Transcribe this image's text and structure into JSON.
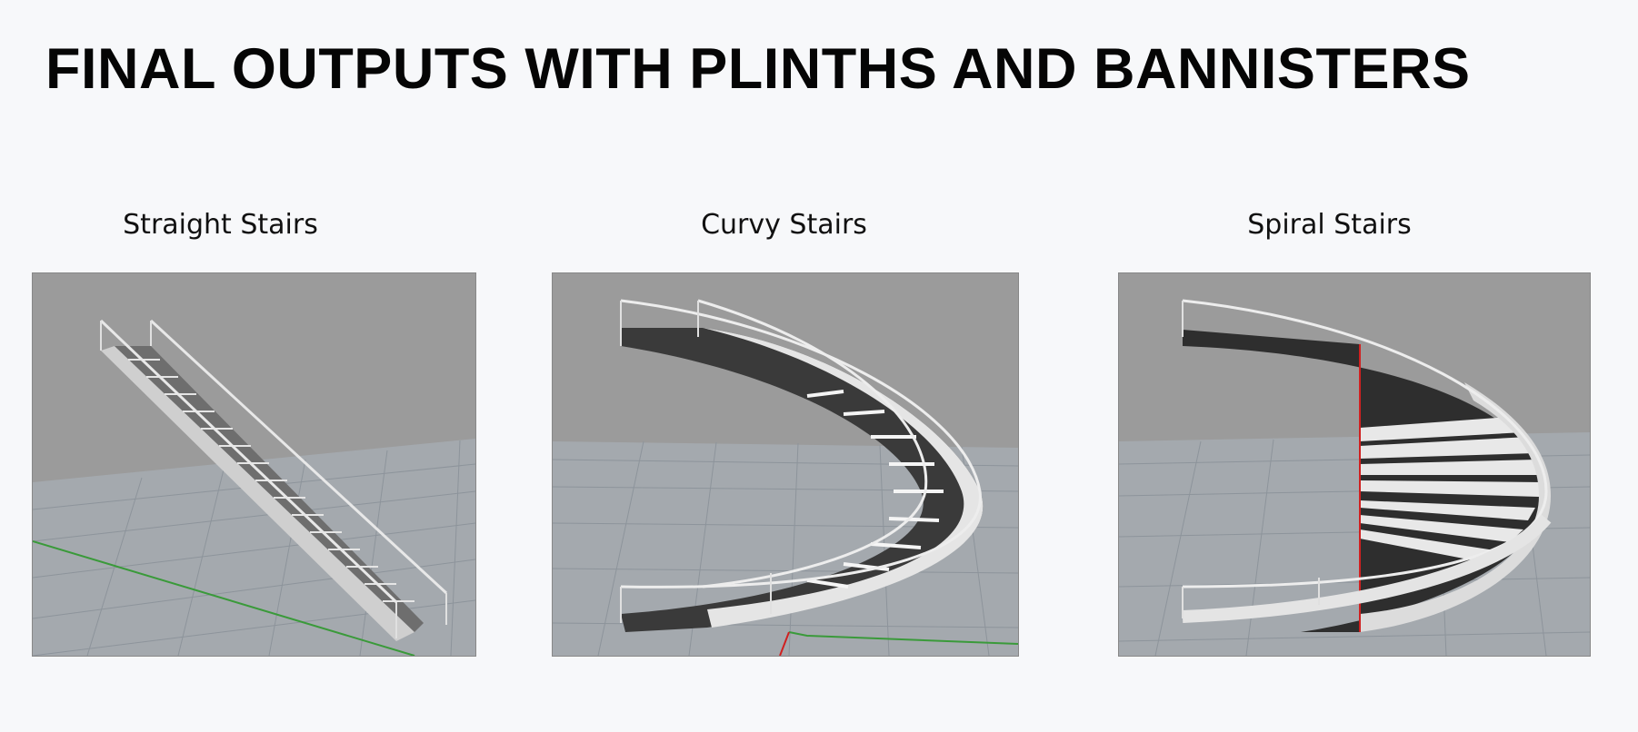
{
  "slide": {
    "title": "FINAL OUTPUTS WITH PLINTHS AND BANNISTERS"
  },
  "panels": [
    {
      "caption": "Straight Stairs"
    },
    {
      "caption": "Curvy Stairs"
    },
    {
      "caption": "Spiral Stairs"
    }
  ],
  "colors": {
    "background": "#f7f8fa",
    "viewport": "#9b9b9b",
    "grid_floor": "#a3a8ad",
    "axis_green": "#3a9a3a",
    "axis_red": "#d02020"
  }
}
